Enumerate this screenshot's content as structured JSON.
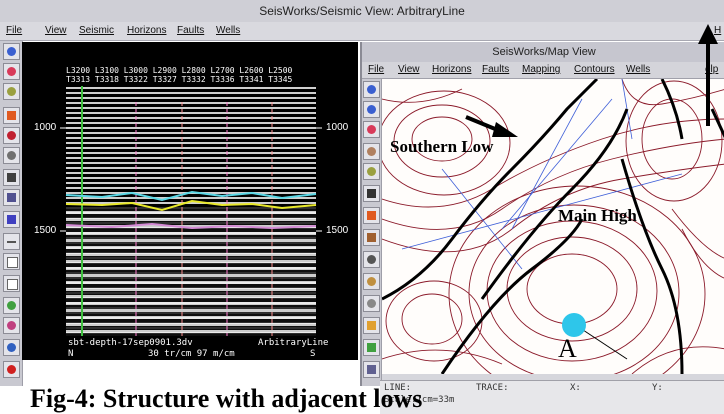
{
  "main_window": {
    "title": "SeisWorks/Seismic View: ArbitraryLine",
    "menu": [
      "File",
      "View",
      "Seismic",
      "Horizons",
      "Faults",
      "Wells"
    ],
    "menu_right": "H"
  },
  "seismic": {
    "header_row1": "L3200 L3100 L3000 L2900 L2800 L2700 L2600 L2500",
    "header_row2": "T3313 T3318 T3322 T3327 T3332 T3336 T3341 T3345",
    "depth_labels": [
      "1000",
      "1500"
    ],
    "footer_left": "sbt-depth-17sep0901.3dv",
    "footer_right": "ArbitraryLine",
    "footer_scale": "30 tr/cm 97 m/cm",
    "compass_left": "N",
    "compass_right": "S",
    "horizon_colors": {
      "cyan": "#5ad8e6",
      "yellow": "#e8e82a",
      "magenta": "#d58bd6"
    }
  },
  "map_window": {
    "title": "SeisWorks/Map View",
    "menu": [
      "File",
      "View",
      "Horizons",
      "Faults",
      "Mapping",
      "Contours",
      "Wells"
    ],
    "menu_right": "elp",
    "labels": {
      "southern_low": "Southern Low",
      "main_high": "Main High",
      "point_a": "A"
    },
    "contour_color": "#8b1a2a",
    "marker_color": "#2ec6ea"
  },
  "status_bar": {
    "line_label": "LINE:",
    "trace_label": "TRACE:",
    "x_label": "X:",
    "y_label": "Y:",
    "line2": "Scale:1cm=33m"
  },
  "caption": "Fig-4: Structure with  adjacent lows"
}
